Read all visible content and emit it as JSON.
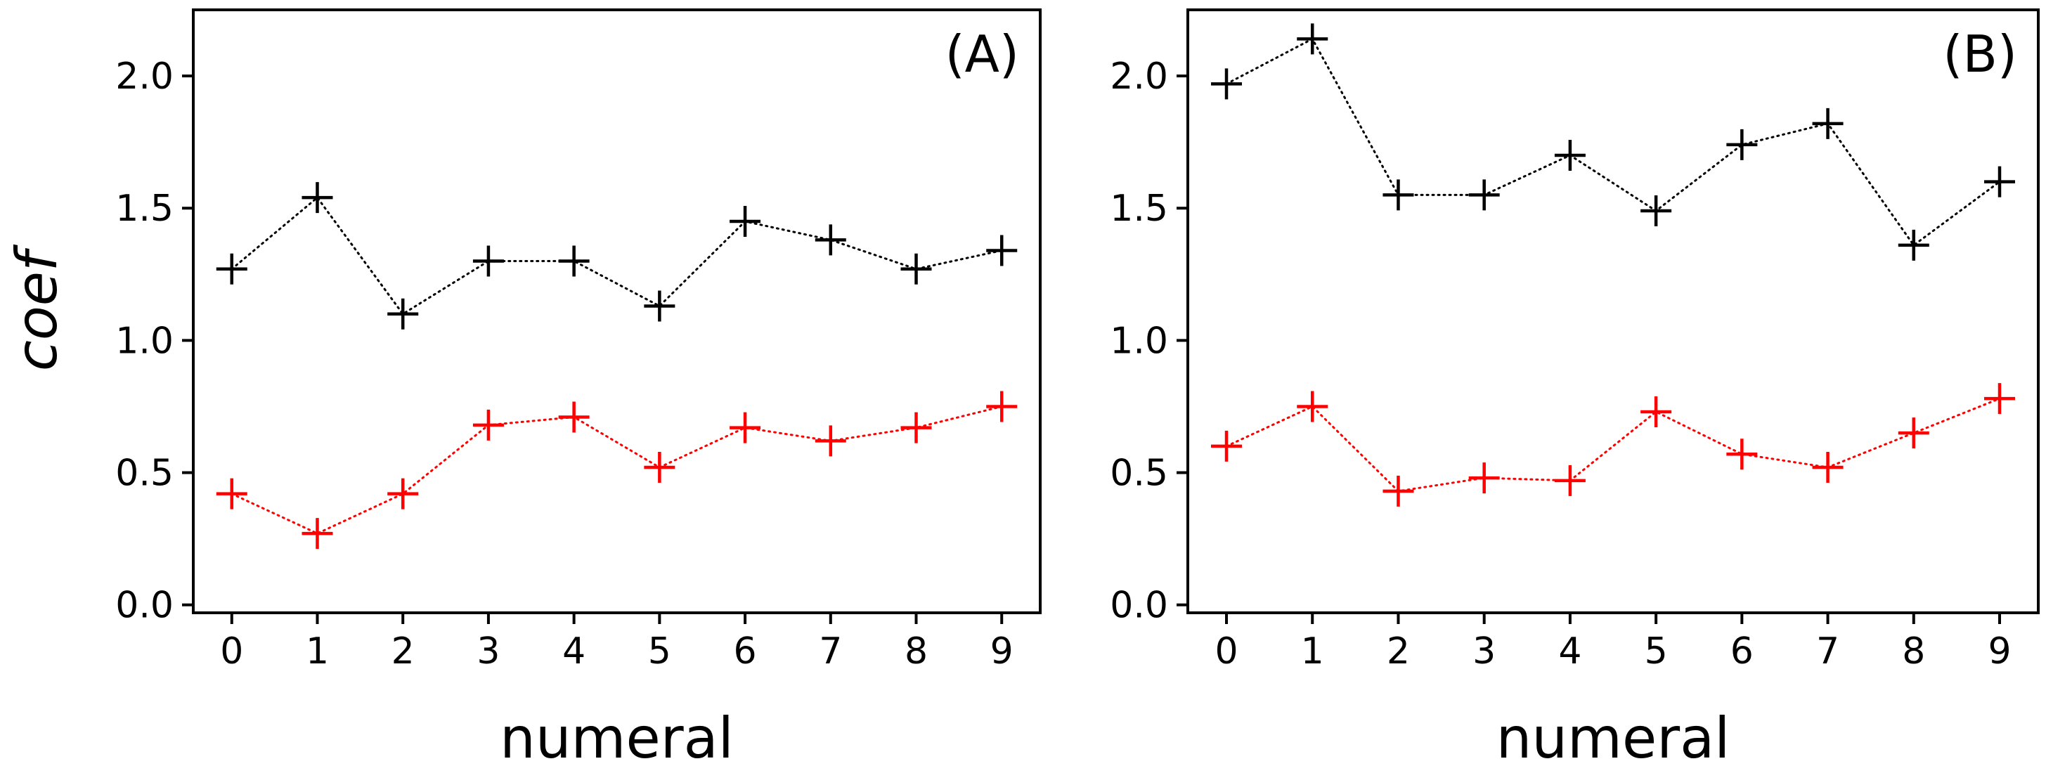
{
  "chart_data": [
    {
      "type": "line",
      "panel_label": "(A)",
      "xlabel": "numeral",
      "ylabel": "coef",
      "x": [
        0,
        1,
        2,
        3,
        4,
        5,
        6,
        7,
        8,
        9
      ],
      "xticks": [
        "0",
        "1",
        "2",
        "3",
        "4",
        "5",
        "6",
        "7",
        "8",
        "9"
      ],
      "yticks": [
        "0.0",
        "0.5",
        "1.0",
        "1.5",
        "2.0"
      ],
      "xlim": [
        -0.45,
        9.45
      ],
      "ylim": [
        -0.03,
        2.25
      ],
      "series": [
        {
          "name": "black",
          "color": "#000000",
          "marker": "+",
          "linestyle": "dotted",
          "values": [
            1.27,
            1.54,
            1.1,
            1.3,
            1.3,
            1.13,
            1.45,
            1.38,
            1.27,
            1.34
          ]
        },
        {
          "name": "red",
          "color": "#ff0000",
          "marker": "+",
          "linestyle": "dotted",
          "values": [
            0.42,
            0.27,
            0.42,
            0.68,
            0.71,
            0.52,
            0.67,
            0.62,
            0.67,
            0.75
          ]
        }
      ]
    },
    {
      "type": "line",
      "panel_label": "(B)",
      "xlabel": "numeral",
      "ylabel": "",
      "x": [
        0,
        1,
        2,
        3,
        4,
        5,
        6,
        7,
        8,
        9
      ],
      "xticks": [
        "0",
        "1",
        "2",
        "3",
        "4",
        "5",
        "6",
        "7",
        "8",
        "9"
      ],
      "yticks": [
        "0.0",
        "0.5",
        "1.0",
        "1.5",
        "2.0"
      ],
      "xlim": [
        -0.45,
        9.45
      ],
      "ylim": [
        -0.03,
        2.25
      ],
      "series": [
        {
          "name": "black",
          "color": "#000000",
          "marker": "+",
          "linestyle": "dotted",
          "values": [
            1.97,
            2.14,
            1.55,
            1.55,
            1.7,
            1.49,
            1.74,
            1.82,
            1.36,
            1.6
          ]
        },
        {
          "name": "red",
          "color": "#ff0000",
          "marker": "+",
          "linestyle": "dotted",
          "values": [
            0.6,
            0.75,
            0.43,
            0.48,
            0.47,
            0.73,
            0.57,
            0.52,
            0.65,
            0.78
          ]
        }
      ]
    }
  ]
}
